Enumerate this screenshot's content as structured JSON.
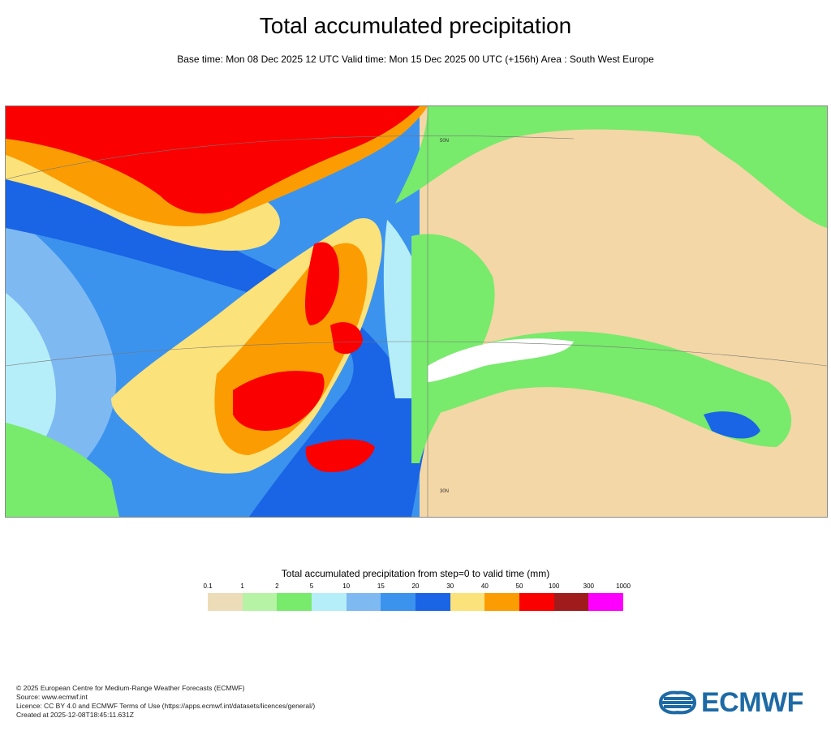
{
  "title": "Total accumulated precipitation",
  "subtitle": "Base time: Mon 08 Dec 2025 12 UTC Valid time: Mon 15 Dec 2025 00 UTC (+156h) Area : South West Europe",
  "map": {
    "area": "South West Europe",
    "lat_labels": [
      "50N",
      "30N"
    ]
  },
  "legend": {
    "title": "Total accumulated precipitation from step=0 to valid time (mm)",
    "ticks": [
      "0.1",
      "1",
      "2",
      "5",
      "10",
      "15",
      "20",
      "30",
      "40",
      "50",
      "100",
      "300",
      "1000"
    ],
    "colors": [
      "#ecdcb8",
      "#b6f3a5",
      "#78ea6c",
      "#b5eef8",
      "#7fb9f2",
      "#3b93ee",
      "#1a64e6",
      "#fce27a",
      "#fb9d02",
      "#fa0000",
      "#a01c1c",
      "#fd00fd"
    ]
  },
  "footer": {
    "copyright": "© 2025 European Centre for Medium-Range Weather Forecasts (ECMWF)",
    "source": "Source: www.ecmwf.int",
    "licence": "Licence: CC BY 4.0 and ECMWF Terms of Use (https://apps.ecmwf.int/datasets/licences/general/)",
    "created": "Created at 2025-12-08T18:45:11.631Z"
  },
  "logo": {
    "text": "ECMWF",
    "color": "#1d6aa5"
  }
}
